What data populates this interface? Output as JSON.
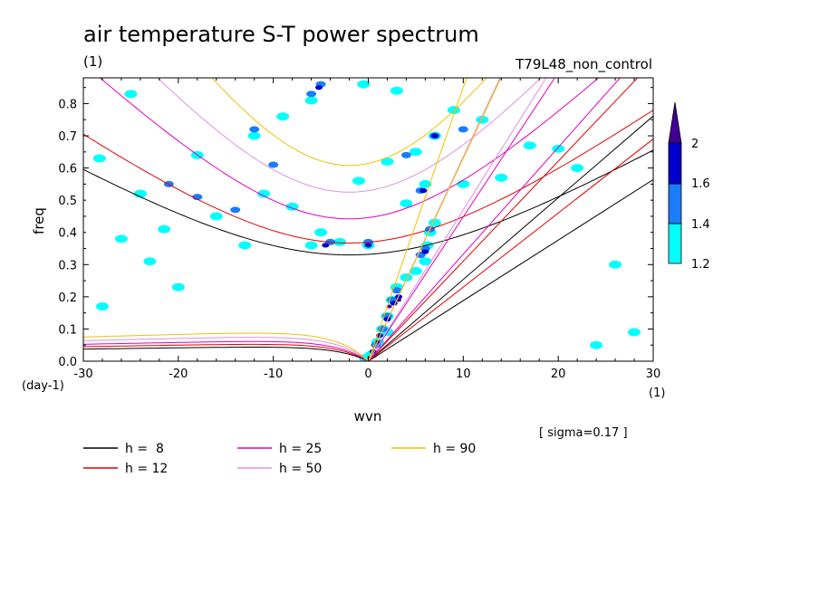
{
  "chart_data": {
    "type": "contour",
    "title": "air temperature S-T power spectrum",
    "subtitle": "(1)",
    "run_label": "T79L48_non_control",
    "xlabel": "wvn",
    "ylabel": "freq",
    "x_unit": "(1)",
    "y_unit": "(day-1)",
    "xlim": [
      -30,
      30
    ],
    "ylim": [
      0,
      0.88
    ],
    "x_ticks": [
      -30,
      -20,
      -10,
      0,
      10,
      20,
      30
    ],
    "x_tick_labels": [
      "-30",
      "-20",
      "-10",
      "0",
      "10",
      "20",
      "30"
    ],
    "y_ticks": [
      0,
      0.1,
      0.2,
      0.3,
      0.4,
      0.5,
      0.6,
      0.7,
      0.8
    ],
    "y_tick_labels": [
      "0.0",
      "0.1",
      "0.2",
      "0.3",
      "0.4",
      "0.5",
      "0.6",
      "0.7",
      "0.8"
    ],
    "sigma_note": "[ sigma=0.17 ]",
    "dispersion_curves": [
      {
        "label": "h =  8",
        "color": "#000000",
        "kelvin_slope": 0.0188,
        "ig_freq0": 0.33,
        "ig_k0": -2.0,
        "ig_b": 0.0177,
        "mrg_peak": 0.05
      },
      {
        "label": "h = 12",
        "color": "#e00000",
        "kelvin_slope": 0.023,
        "ig_freq0": 0.367,
        "ig_k0": -2.0,
        "ig_b": 0.0215,
        "mrg_peak": 0.06
      },
      {
        "label": "h = 25",
        "color": "#e000c0",
        "kelvin_slope": 0.0332,
        "ig_freq0": 0.442,
        "ig_k0": -2.0,
        "ig_b": 0.029,
        "mrg_peak": 0.07
      },
      {
        "label": "h = 50",
        "color": "#e090e0",
        "kelvin_slope": 0.047,
        "ig_freq0": 0.525,
        "ig_k0": -2.0,
        "ig_b": 0.035,
        "mrg_peak": 0.085
      },
      {
        "label": "h = 90",
        "color": "#f0c000",
        "kelvin_slope": 0.063,
        "ig_freq0": 0.608,
        "ig_k0": -2.0,
        "ig_b": 0.044,
        "mrg_peak": 0.1
      }
    ],
    "colorbar": {
      "levels": [
        1.2,
        1.4,
        1.6,
        2
      ],
      "level_labels": [
        "1.2",
        "1.4",
        "1.6",
        "2"
      ],
      "colors": [
        "#00ffff",
        "#1a7cff",
        "#0000cc",
        "#400090"
      ]
    },
    "contour_regions": [
      {
        "level": 1,
        "points": [
          [
            0.3,
            0.02
          ],
          [
            1.0,
            0.06
          ],
          [
            1.5,
            0.1
          ],
          [
            2.0,
            0.14
          ],
          [
            2.5,
            0.19
          ],
          [
            3.0,
            0.23
          ],
          [
            4.0,
            0.26
          ],
          [
            5.0,
            0.28
          ],
          [
            6.0,
            0.31
          ],
          [
            6.2,
            0.36
          ],
          [
            6.5,
            0.4
          ],
          [
            7.0,
            0.43
          ],
          [
            -0.3,
            0.01
          ],
          [
            -28.3,
            0.63
          ],
          [
            -25,
            0.83
          ],
          [
            -24,
            0.52
          ],
          [
            -21.5,
            0.41
          ],
          [
            -18,
            0.64
          ],
          [
            -16,
            0.45
          ],
          [
            -12,
            0.7
          ],
          [
            -11,
            0.52
          ],
          [
            -9,
            0.76
          ],
          [
            -8,
            0.48
          ],
          [
            -6,
            0.81
          ],
          [
            -5,
            0.4
          ],
          [
            -3,
            0.37
          ],
          [
            -1,
            0.56
          ],
          [
            0,
            0.36
          ],
          [
            2,
            0.62
          ],
          [
            4,
            0.49
          ],
          [
            5,
            0.65
          ],
          [
            6,
            0.55
          ],
          [
            7,
            0.7
          ],
          [
            9,
            0.78
          ],
          [
            10,
            0.55
          ],
          [
            12,
            0.75
          ],
          [
            14,
            0.57
          ],
          [
            17,
            0.67
          ],
          [
            20,
            0.66
          ],
          [
            22,
            0.6
          ],
          [
            26,
            0.3
          ],
          [
            -26,
            0.38
          ],
          [
            -28,
            0.17
          ],
          [
            -23,
            0.31
          ],
          [
            -13,
            0.36
          ],
          [
            -6,
            0.36
          ],
          [
            2,
            0.09
          ],
          [
            -0.5,
            0.86
          ],
          [
            3,
            0.84
          ],
          [
            -20,
            0.23
          ],
          [
            24,
            0.05
          ],
          [
            28,
            0.09
          ]
        ]
      },
      {
        "level": 2,
        "points": [
          [
            0.8,
            0.05
          ],
          [
            1.5,
            0.1
          ],
          [
            2.0,
            0.14
          ],
          [
            2.5,
            0.19
          ],
          [
            3.0,
            0.22
          ],
          [
            5.5,
            0.33
          ],
          [
            6.0,
            0.35
          ],
          [
            6.5,
            0.41
          ],
          [
            -5,
            0.86
          ],
          [
            -6,
            0.83
          ],
          [
            -21,
            0.55
          ],
          [
            -18,
            0.51
          ],
          [
            -12,
            0.72
          ],
          [
            -4,
            0.37
          ],
          [
            0,
            0.37
          ],
          [
            4,
            0.64
          ],
          [
            5.5,
            0.53
          ],
          [
            7,
            0.7
          ],
          [
            -14,
            0.47
          ],
          [
            -10,
            0.61
          ],
          [
            10,
            0.72
          ]
        ]
      },
      {
        "level": 3,
        "points": [
          [
            0.5,
            0.03
          ],
          [
            1.2,
            0.08
          ],
          [
            2.0,
            0.13
          ],
          [
            2.7,
            0.18
          ],
          [
            3.2,
            0.2
          ],
          [
            6.0,
            0.34
          ],
          [
            5.8,
            0.53
          ],
          [
            -5.2,
            0.85
          ],
          [
            0,
            0.36
          ],
          [
            7,
            0.7
          ],
          [
            -4.5,
            0.36
          ]
        ]
      },
      {
        "level": 4,
        "points": [
          [
            0.2,
            0.01
          ],
          [
            1.0,
            0.06
          ],
          [
            2.2,
            0.17
          ],
          [
            3.2,
            0.19
          ]
        ]
      }
    ]
  }
}
